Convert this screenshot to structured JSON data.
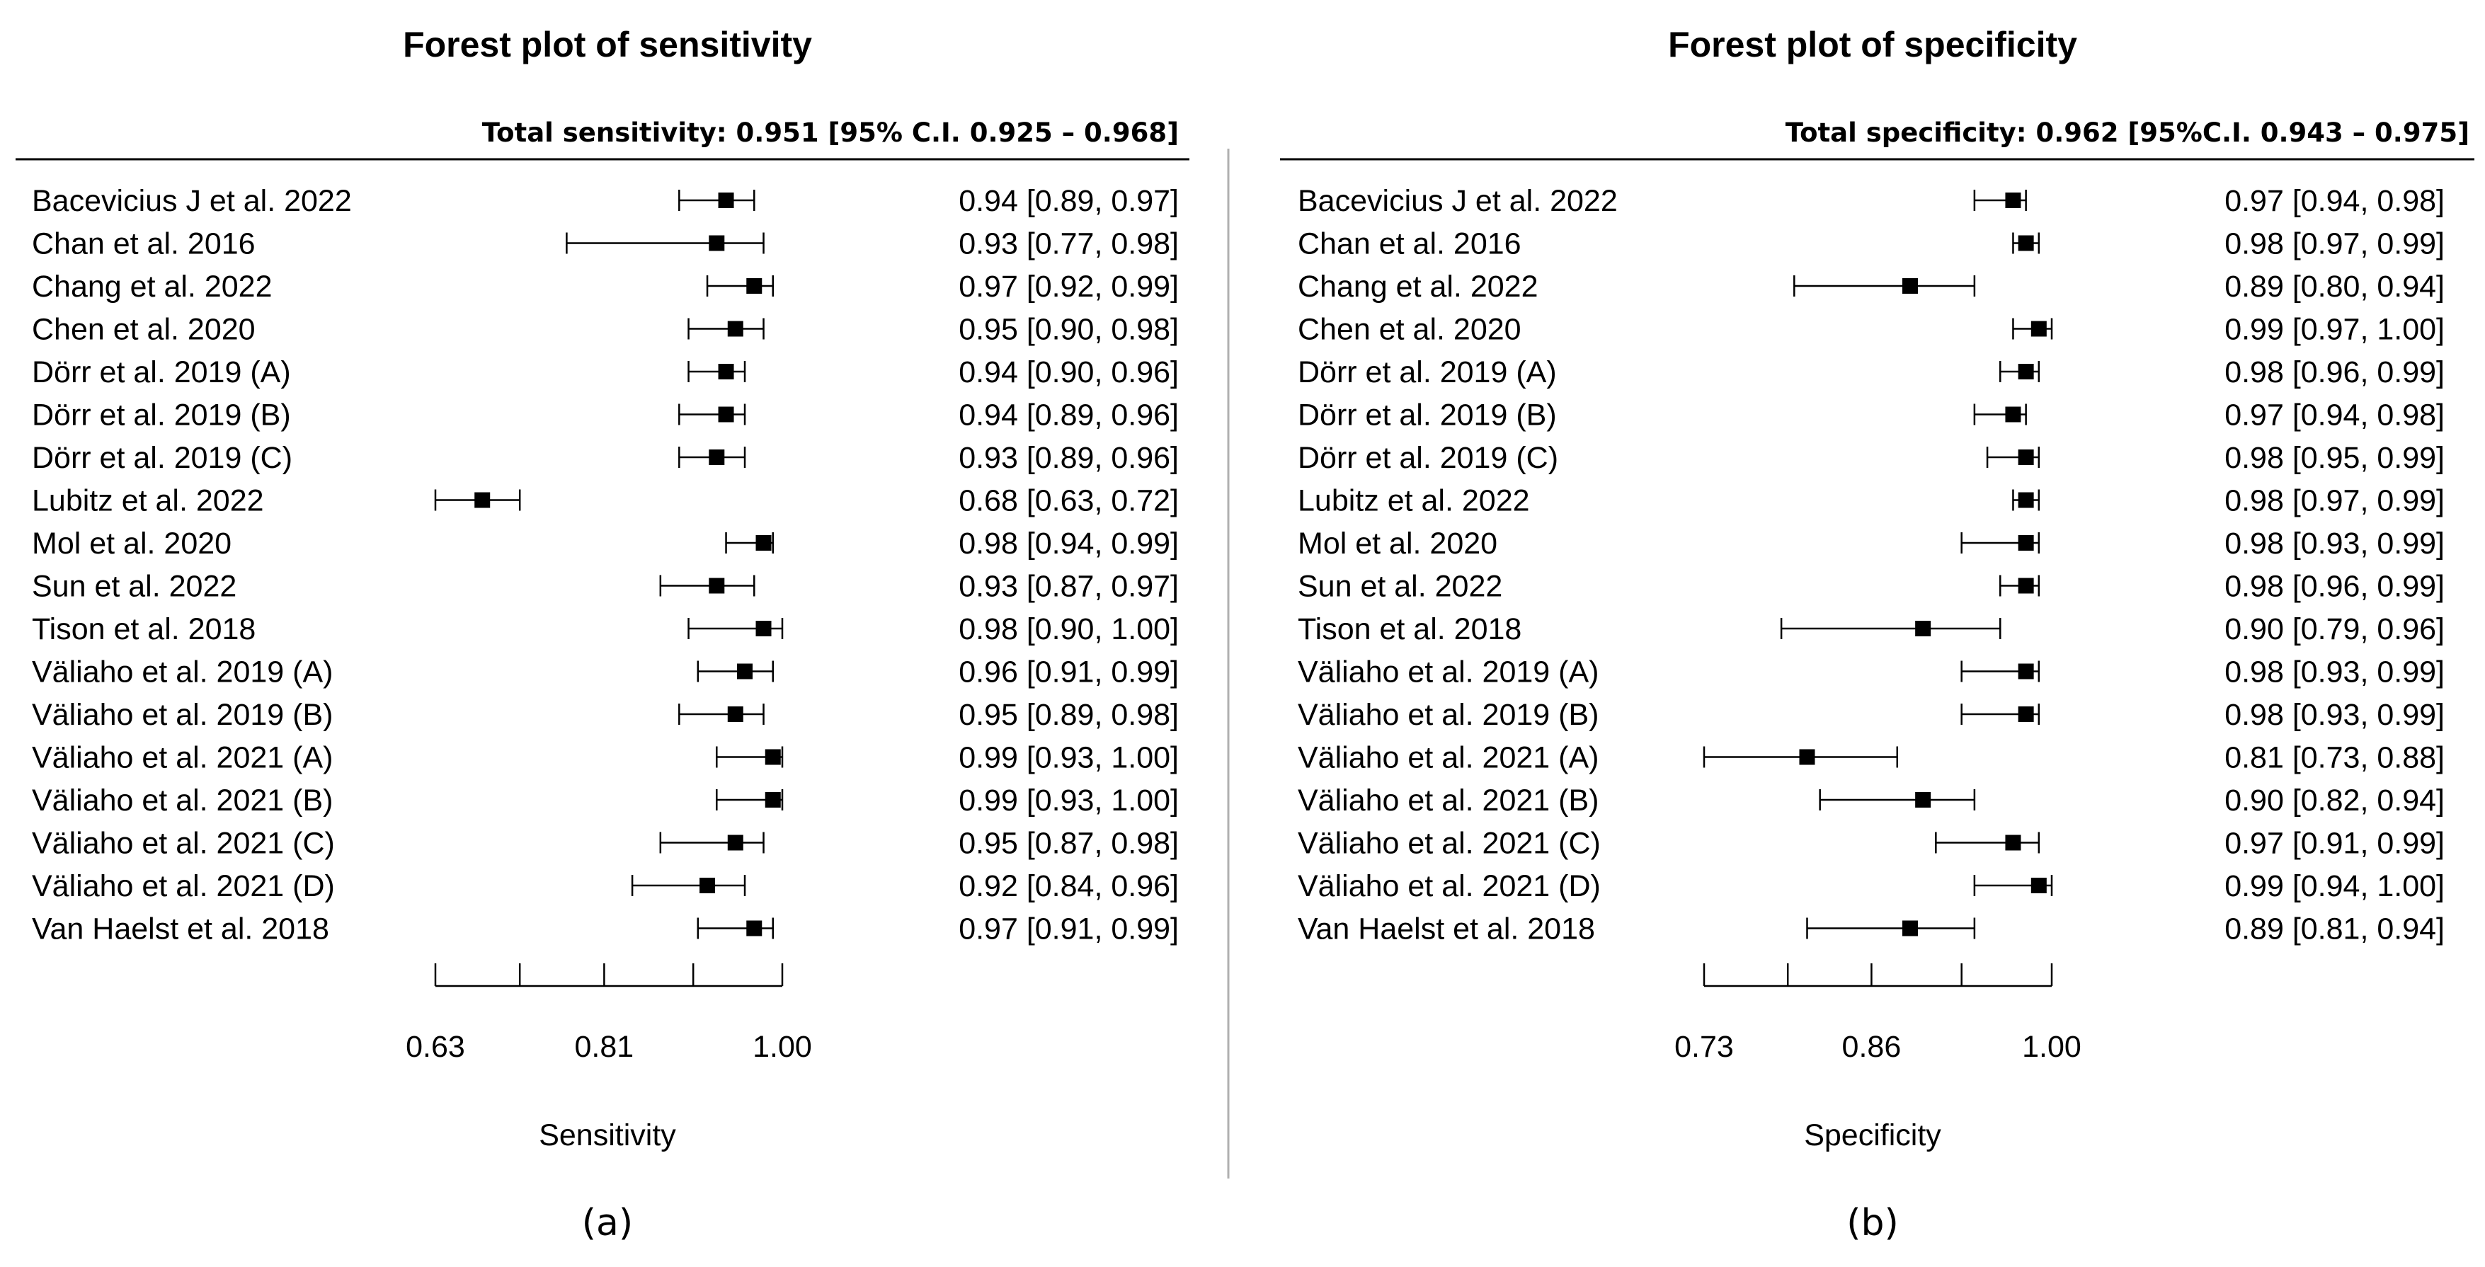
{
  "chart_data": [
    {
      "type": "forest",
      "title": "Forest plot of sensitivity",
      "summary": "Total sensitivity: 0.951 [95% C.I. 0.925 – 0.968]",
      "xlabel": "Sensitivity",
      "caption": "(a)",
      "xlim": [
        0.63,
        1.0
      ],
      "tick_values": [
        0.63,
        0.72,
        0.81,
        0.905,
        1.0
      ],
      "tick_labels": [
        "0.63",
        "0.81",
        "1.00"
      ],
      "tick_label_values": [
        0.63,
        0.81,
        1.0
      ],
      "studies": [
        {
          "label": "Bacevicius J et al. 2022",
          "est": 0.94,
          "lo": 0.89,
          "hi": 0.97,
          "text": "0.94 [0.89, 0.97]"
        },
        {
          "label": "Chan et al. 2016",
          "est": 0.93,
          "lo": 0.77,
          "hi": 0.98,
          "text": "0.93 [0.77, 0.98]"
        },
        {
          "label": "Chang et al. 2022",
          "est": 0.97,
          "lo": 0.92,
          "hi": 0.99,
          "text": "0.97 [0.92, 0.99]"
        },
        {
          "label": "Chen et al. 2020",
          "est": 0.95,
          "lo": 0.9,
          "hi": 0.98,
          "text": "0.95 [0.90, 0.98]"
        },
        {
          "label": "Dörr et al. 2019 (A)",
          "est": 0.94,
          "lo": 0.9,
          "hi": 0.96,
          "text": "0.94 [0.90, 0.96]"
        },
        {
          "label": "Dörr et al. 2019 (B)",
          "est": 0.94,
          "lo": 0.89,
          "hi": 0.96,
          "text": "0.94 [0.89, 0.96]"
        },
        {
          "label": "Dörr et al. 2019 (C)",
          "est": 0.93,
          "lo": 0.89,
          "hi": 0.96,
          "text": "0.93 [0.89, 0.96]"
        },
        {
          "label": "Lubitz et al. 2022",
          "est": 0.68,
          "lo": 0.63,
          "hi": 0.72,
          "text": "0.68 [0.63, 0.72]"
        },
        {
          "label": "Mol et al. 2020",
          "est": 0.98,
          "lo": 0.94,
          "hi": 0.99,
          "text": "0.98 [0.94, 0.99]"
        },
        {
          "label": "Sun et al. 2022",
          "est": 0.93,
          "lo": 0.87,
          "hi": 0.97,
          "text": "0.93 [0.87, 0.97]"
        },
        {
          "label": "Tison et al. 2018",
          "est": 0.98,
          "lo": 0.9,
          "hi": 1.0,
          "text": "0.98 [0.90, 1.00]"
        },
        {
          "label": "Väliaho et al. 2019 (A)",
          "est": 0.96,
          "lo": 0.91,
          "hi": 0.99,
          "text": "0.96 [0.91, 0.99]"
        },
        {
          "label": "Väliaho et al. 2019 (B)",
          "est": 0.95,
          "lo": 0.89,
          "hi": 0.98,
          "text": "0.95 [0.89, 0.98]"
        },
        {
          "label": "Väliaho et al. 2021 (A)",
          "est": 0.99,
          "lo": 0.93,
          "hi": 1.0,
          "text": "0.99 [0.93, 1.00]"
        },
        {
          "label": "Väliaho et al. 2021 (B)",
          "est": 0.99,
          "lo": 0.93,
          "hi": 1.0,
          "text": "0.99 [0.93, 1.00]"
        },
        {
          "label": "Väliaho et al. 2021 (C)",
          "est": 0.95,
          "lo": 0.87,
          "hi": 0.98,
          "text": "0.95 [0.87, 0.98]"
        },
        {
          "label": "Väliaho et al. 2021 (D)",
          "est": 0.92,
          "lo": 0.84,
          "hi": 0.96,
          "text": "0.92 [0.84, 0.96]"
        },
        {
          "label": "Van Haelst et al. 2018",
          "est": 0.97,
          "lo": 0.91,
          "hi": 0.99,
          "text": "0.97 [0.91, 0.99]"
        }
      ]
    },
    {
      "type": "forest",
      "title": "Forest plot of specificity",
      "summary": "Total specificity: 0.962 [95%C.I. 0.943 – 0.975]",
      "xlabel": "Specificity",
      "caption": "(b)",
      "xlim": [
        0.73,
        1.0
      ],
      "tick_values": [
        0.73,
        0.795,
        0.86,
        0.93,
        1.0
      ],
      "tick_labels": [
        "0.73",
        "0.86",
        "1.00"
      ],
      "tick_label_values": [
        0.73,
        0.86,
        1.0
      ],
      "studies": [
        {
          "label": "Bacevicius J et al. 2022",
          "est": 0.97,
          "lo": 0.94,
          "hi": 0.98,
          "text": "0.97 [0.94, 0.98]"
        },
        {
          "label": "Chan et al. 2016",
          "est": 0.98,
          "lo": 0.97,
          "hi": 0.99,
          "text": "0.98 [0.97, 0.99]"
        },
        {
          "label": "Chang et al. 2022",
          "est": 0.89,
          "lo": 0.8,
          "hi": 0.94,
          "text": "0.89 [0.80, 0.94]"
        },
        {
          "label": "Chen et al. 2020",
          "est": 0.99,
          "lo": 0.97,
          "hi": 1.0,
          "text": "0.99 [0.97, 1.00]"
        },
        {
          "label": "Dörr et al. 2019 (A)",
          "est": 0.98,
          "lo": 0.96,
          "hi": 0.99,
          "text": "0.98 [0.96, 0.99]"
        },
        {
          "label": "Dörr et al. 2019 (B)",
          "est": 0.97,
          "lo": 0.94,
          "hi": 0.98,
          "text": "0.97 [0.94, 0.98]"
        },
        {
          "label": "Dörr et al. 2019 (C)",
          "est": 0.98,
          "lo": 0.95,
          "hi": 0.99,
          "text": "0.98 [0.95, 0.99]"
        },
        {
          "label": "Lubitz et al. 2022",
          "est": 0.98,
          "lo": 0.97,
          "hi": 0.99,
          "text": "0.98 [0.97, 0.99]"
        },
        {
          "label": "Mol et al. 2020",
          "est": 0.98,
          "lo": 0.93,
          "hi": 0.99,
          "text": "0.98 [0.93, 0.99]"
        },
        {
          "label": "Sun et al. 2022",
          "est": 0.98,
          "lo": 0.96,
          "hi": 0.99,
          "text": "0.98 [0.96, 0.99]"
        },
        {
          "label": "Tison et al. 2018",
          "est": 0.9,
          "lo": 0.79,
          "hi": 0.96,
          "text": "0.90 [0.79, 0.96]"
        },
        {
          "label": "Väliaho et al. 2019 (A)",
          "est": 0.98,
          "lo": 0.93,
          "hi": 0.99,
          "text": "0.98 [0.93, 0.99]"
        },
        {
          "label": "Väliaho et al. 2019 (B)",
          "est": 0.98,
          "lo": 0.93,
          "hi": 0.99,
          "text": "0.98 [0.93, 0.99]"
        },
        {
          "label": "Väliaho et al. 2021 (A)",
          "est": 0.81,
          "lo": 0.73,
          "hi": 0.88,
          "text": "0.81 [0.73, 0.88]"
        },
        {
          "label": "Väliaho et al. 2021 (B)",
          "est": 0.9,
          "lo": 0.82,
          "hi": 0.94,
          "text": "0.90 [0.82, 0.94]"
        },
        {
          "label": "Väliaho et al. 2021 (C)",
          "est": 0.97,
          "lo": 0.91,
          "hi": 0.99,
          "text": "0.97 [0.91, 0.99]"
        },
        {
          "label": "Väliaho et al. 2021 (D)",
          "est": 0.99,
          "lo": 0.94,
          "hi": 1.0,
          "text": "0.99 [0.94, 1.00]"
        },
        {
          "label": "Van Haelst et al. 2018",
          "est": 0.89,
          "lo": 0.81,
          "hi": 0.94,
          "text": "0.89 [0.81, 0.94]"
        }
      ]
    }
  ]
}
